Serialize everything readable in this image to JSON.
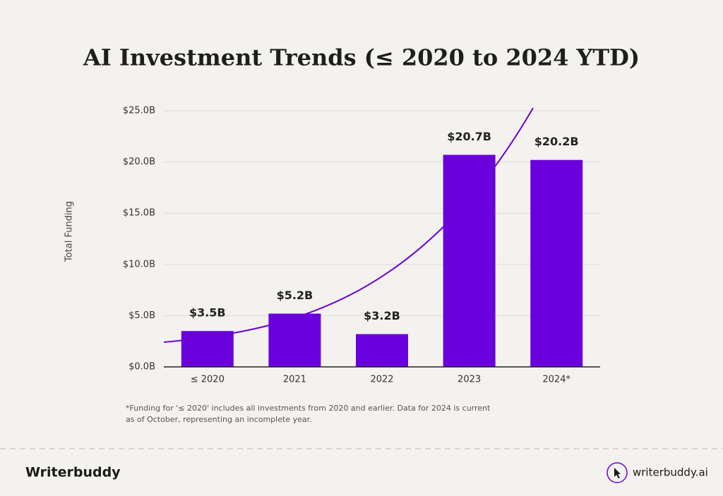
{
  "chart_data": {
    "type": "bar",
    "title": "AI Investment Trends  (≤ 2020 to 2024 YTD)",
    "y_label": "Total Funding",
    "categories": [
      "≤ 2020",
      "2021",
      "2022",
      "2023",
      "2024*"
    ],
    "values": [
      3.5,
      5.2,
      3.2,
      20.7,
      20.2
    ],
    "value_labels": [
      "$3.5B",
      "$5.2B",
      "$3.2B",
      "$20.7B",
      "$20.2B"
    ],
    "color": "#6a00dc",
    "ylim": [
      0,
      25
    ],
    "yticks": [
      {
        "value": 0,
        "label": "$0.0B"
      },
      {
        "value": 5,
        "label": "$5.0B"
      },
      {
        "value": 10,
        "label": "$10.0B"
      },
      {
        "value": 15,
        "label": "$15.0B"
      },
      {
        "value": 20,
        "label": "$20.0B"
      },
      {
        "value": 25,
        "label": "$25.0B"
      }
    ],
    "grid": true,
    "footnote": [
      "*Funding for '≤ 2020' includes all investments from 2020 and earlier. Data for 2024 is current",
      "as of October, representing an incomplete year."
    ],
    "brand": "Writerbuddy",
    "website": "writerbuddy.ai"
  }
}
